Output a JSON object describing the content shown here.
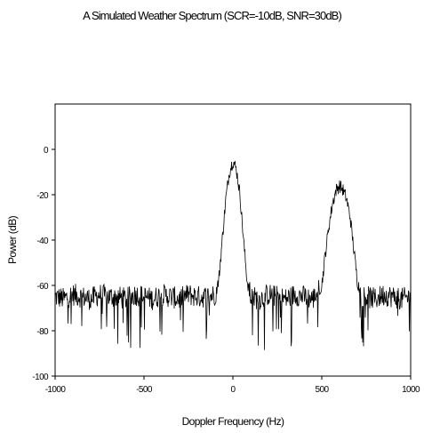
{
  "chart_data": {
    "type": "line",
    "title": "A Simulated Weather Spectrum (SCR=-10dB, SNR=30dB)",
    "xlabel": "Doppler Frequency (Hz)",
    "ylabel": "Power (dB)",
    "xlim": [
      -1000,
      1000
    ],
    "ylim": [
      -100,
      20
    ],
    "xticks": [
      -1000,
      -500,
      0,
      500,
      1000
    ],
    "yticks": [
      0,
      -20,
      -40,
      -60,
      -80,
      -100
    ],
    "grid": false,
    "series": [
      {
        "color": "#000000",
        "noise_floor_db": -65,
        "components": [
          {
            "center_hz": 0,
            "peak_db": -5
          },
          {
            "center_hz": 600,
            "peak_db": -16
          }
        ],
        "x": [
          -1000,
          -950,
          -900,
          -850,
          -800,
          -750,
          -700,
          -650,
          -600,
          -550,
          -500,
          -450,
          -400,
          -350,
          -300,
          -250,
          -200,
          -150,
          -100,
          -80,
          -60,
          -40,
          -20,
          0,
          20,
          40,
          60,
          80,
          100,
          150,
          200,
          250,
          300,
          350,
          400,
          450,
          500,
          520,
          540,
          560,
          580,
          600,
          620,
          640,
          660,
          680,
          700,
          720,
          750,
          800,
          850,
          900,
          950,
          1000
        ],
        "y": [
          -65,
          -66,
          -64,
          -65,
          -66,
          -64,
          -65,
          -65,
          -66,
          -64,
          -65,
          -66,
          -64,
          -65,
          -66,
          -64,
          -65,
          -65,
          -64,
          -58,
          -40,
          -22,
          -10,
          -5,
          -9,
          -20,
          -40,
          -58,
          -65,
          -66,
          -64,
          -65,
          -66,
          -64,
          -65,
          -66,
          -60,
          -46,
          -34,
          -24,
          -18,
          -16,
          -18,
          -22,
          -30,
          -44,
          -58,
          -64,
          -65,
          -66,
          -64,
          -65,
          -66,
          -65
        ]
      }
    ]
  }
}
